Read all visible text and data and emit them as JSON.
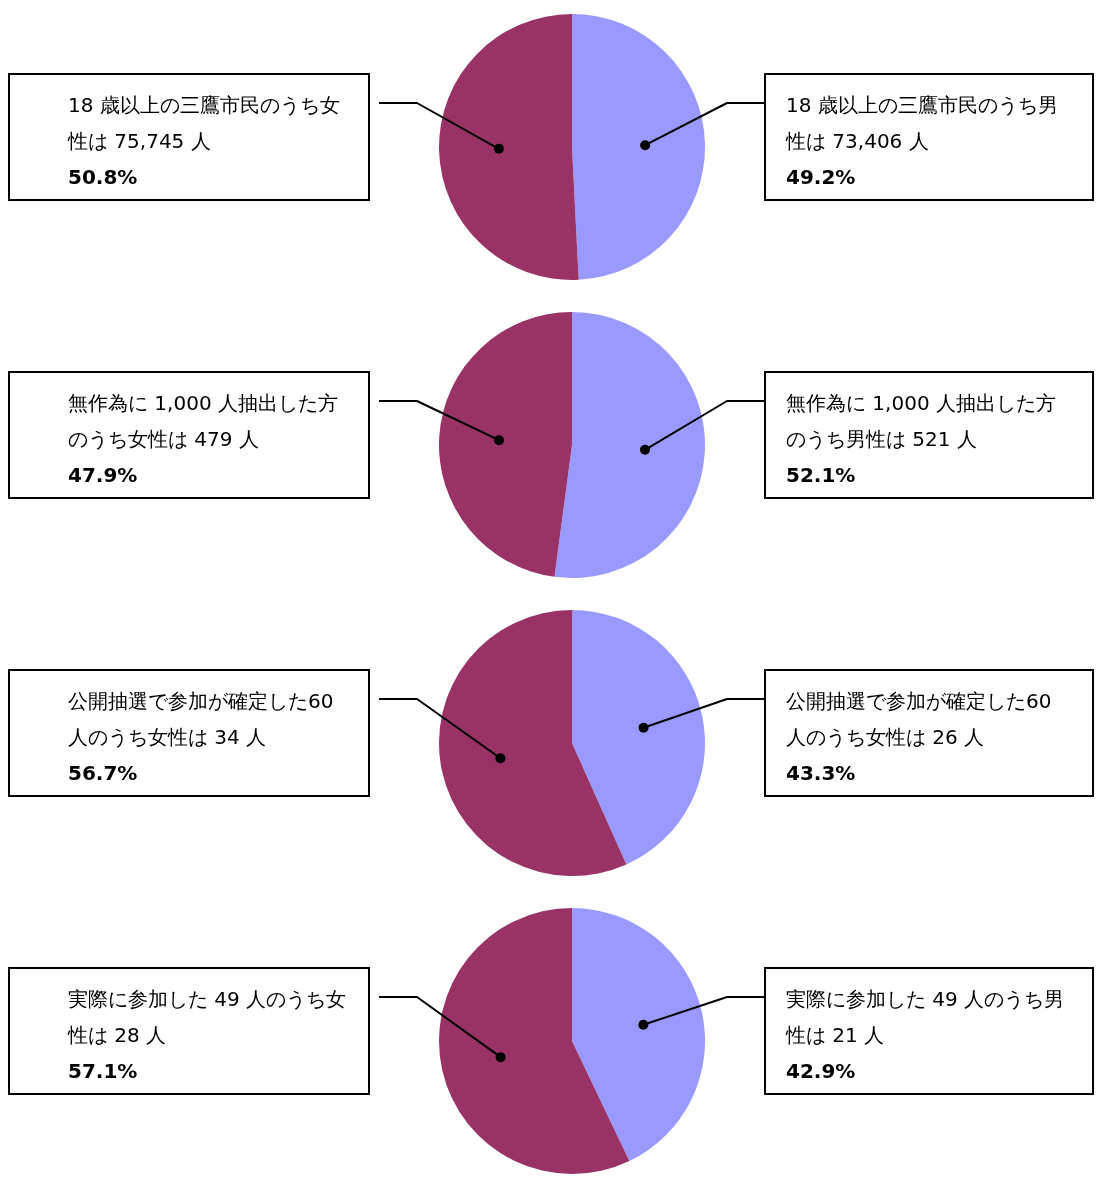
{
  "chart_data": [
    {
      "type": "pie",
      "categories": [
        "18 歳以上の三鷹市民のうち男性は 73,406 人",
        "18 歳以上の三鷹市民のうち女性は 75,745 人"
      ],
      "values": [
        49.2,
        50.8
      ],
      "value_labels": [
        "49.2%",
        "50.8%"
      ],
      "colors": [
        "#9999ff",
        "#993366"
      ]
    },
    {
      "type": "pie",
      "categories": [
        "無作為に 1,000 人抽出した方のうち男性は 521 人",
        "無作為に 1,000 人抽出した方のうち女性は 479 人"
      ],
      "values": [
        52.1,
        47.9
      ],
      "value_labels": [
        "52.1%",
        "47.9%"
      ],
      "colors": [
        "#9999ff",
        "#993366"
      ]
    },
    {
      "type": "pie",
      "categories": [
        "公開抽選で参加が確定した60 人のうち女性は 26 人",
        "公開抽選で参加が確定した60 人のうち女性は 34 人"
      ],
      "values": [
        43.3,
        56.7
      ],
      "value_labels": [
        "43.3%",
        "56.7%"
      ],
      "colors": [
        "#9999ff",
        "#993366"
      ]
    },
    {
      "type": "pie",
      "categories": [
        "実際に参加した 49 人のうち男性は 21 人",
        "実際に参加した 49 人のうち女性は 28 人"
      ],
      "values": [
        42.9,
        57.1
      ],
      "value_labels": [
        "42.9%",
        "57.1%"
      ],
      "colors": [
        "#9999ff",
        "#993366"
      ]
    }
  ]
}
